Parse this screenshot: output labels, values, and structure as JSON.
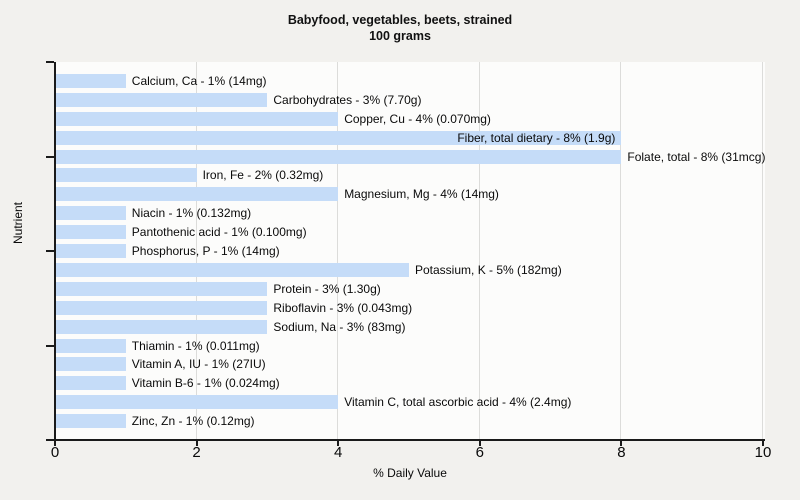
{
  "title": {
    "line1": "Babyfood, vegetables, beets, strained",
    "line2": "100 grams"
  },
  "chart_data": {
    "type": "bar",
    "orientation": "horizontal",
    "title": "Babyfood, vegetables, beets, strained — 100 grams",
    "xlabel": "% Daily Value",
    "ylabel": "Nutrient",
    "xlim": [
      0,
      10
    ],
    "x_ticks": [
      0,
      2,
      4,
      6,
      8,
      10
    ],
    "grid": "vertical",
    "legend": "none",
    "categories": [
      "Calcium, Ca",
      "Carbohydrates",
      "Copper, Cu",
      "Fiber, total dietary",
      "Folate, total",
      "Iron, Fe",
      "Magnesium, Mg",
      "Niacin",
      "Pantothenic acid",
      "Phosphorus, P",
      "Potassium, K",
      "Protein",
      "Riboflavin",
      "Sodium, Na",
      "Thiamin",
      "Vitamin A, IU",
      "Vitamin B-6",
      "Vitamin C, total ascorbic acid",
      "Zinc, Zn"
    ],
    "values": [
      1,
      3,
      4,
      8,
      8,
      2,
      4,
      1,
      1,
      1,
      5,
      3,
      3,
      3,
      1,
      1,
      1,
      4,
      1
    ],
    "nutrients": [
      {
        "name": "Calcium, Ca",
        "pct": 1,
        "amount": "14mg"
      },
      {
        "name": "Carbohydrates",
        "pct": 3,
        "amount": "7.70g"
      },
      {
        "name": "Copper, Cu",
        "pct": 4,
        "amount": "0.070mg"
      },
      {
        "name": "Fiber, total dietary",
        "pct": 8,
        "amount": "1.9g",
        "label_inside": true
      },
      {
        "name": "Folate, total",
        "pct": 8,
        "amount": "31mcg"
      },
      {
        "name": "Iron, Fe",
        "pct": 2,
        "amount": "0.32mg"
      },
      {
        "name": "Magnesium, Mg",
        "pct": 4,
        "amount": "14mg"
      },
      {
        "name": "Niacin",
        "pct": 1,
        "amount": "0.132mg"
      },
      {
        "name": "Pantothenic acid",
        "pct": 1,
        "amount": "0.100mg"
      },
      {
        "name": "Phosphorus, P",
        "pct": 1,
        "amount": "14mg"
      },
      {
        "name": "Potassium, K",
        "pct": 5,
        "amount": "182mg"
      },
      {
        "name": "Protein",
        "pct": 3,
        "amount": "1.30g"
      },
      {
        "name": "Riboflavin",
        "pct": 3,
        "amount": "0.043mg"
      },
      {
        "name": "Sodium, Na",
        "pct": 3,
        "amount": "83mg"
      },
      {
        "name": "Thiamin",
        "pct": 1,
        "amount": "0.011mg"
      },
      {
        "name": "Vitamin A, IU",
        "pct": 1,
        "amount": "27IU"
      },
      {
        "name": "Vitamin B-6",
        "pct": 1,
        "amount": "0.024mg"
      },
      {
        "name": "Vitamin C, total ascorbic acid",
        "pct": 4,
        "amount": "2.4mg"
      },
      {
        "name": "Zinc, Zn",
        "pct": 1,
        "amount": "0.12mg"
      }
    ]
  },
  "colors": {
    "figure_background": "#f2f1ee",
    "plot_background": "#fcfcfb",
    "bar_fill": "#c5dcf8",
    "gridline": "#dcdcda",
    "axis": "#1a1a1a",
    "text": "#0a0a0a"
  }
}
